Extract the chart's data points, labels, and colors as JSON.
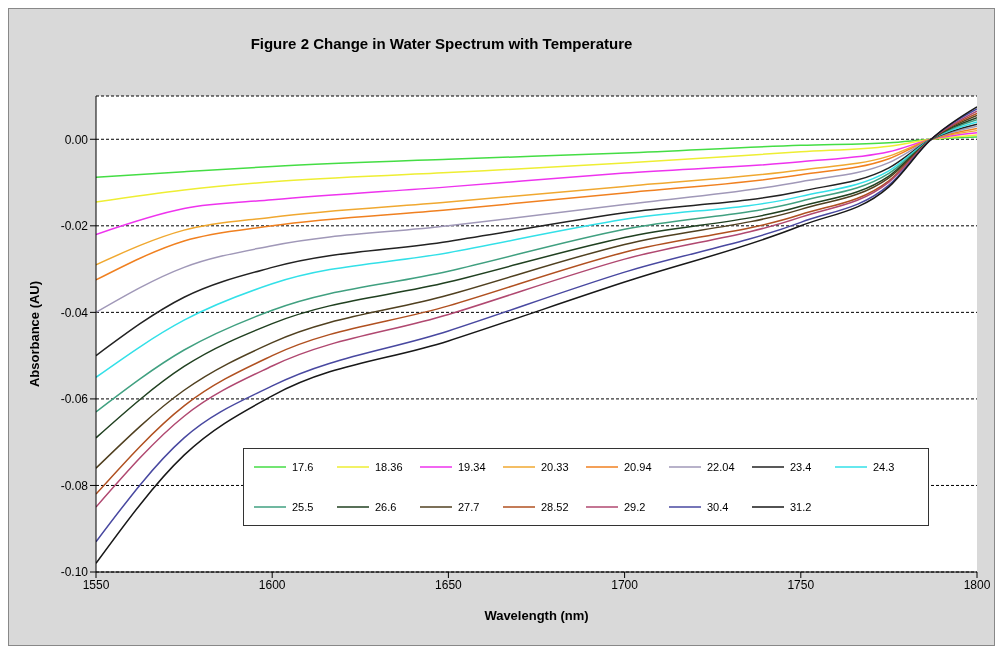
{
  "chart_data": {
    "type": "line",
    "title": "Figure 2 Change in Water Spectrum with Temperature",
    "xlabel": "Wavelength (nm)",
    "ylabel": "Absorbance (AU)",
    "x": [
      1550,
      1575,
      1600,
      1650,
      1700,
      1750,
      1775,
      1787,
      1800
    ],
    "xlim": [
      1550,
      1800
    ],
    "xticks": [
      1550,
      1600,
      1650,
      1700,
      1750,
      1800
    ],
    "ylim": [
      -0.1,
      0.01
    ],
    "yticks": [
      {
        "value": -0.1,
        "label": "-0.10"
      },
      {
        "value": -0.08,
        "label": "-0.08"
      },
      {
        "value": -0.06,
        "label": "-0.06"
      },
      {
        "value": -0.04,
        "label": "-0.04"
      },
      {
        "value": -0.02,
        "label": "-0.02"
      },
      {
        "value": 0,
        "label": "0.00"
      }
    ],
    "grid": "y",
    "legend": "bottom right",
    "marker": "none",
    "line_style": "solid",
    "series": [
      {
        "name": "17.6",
        "color": "#44dd44",
        "values": [
          -0.0088,
          -0.0075,
          -0.0063,
          -0.0046,
          -0.0032,
          -0.0014,
          -0.0008,
          0,
          0.0005
        ]
      },
      {
        "name": "18.36",
        "color": "#eeee33",
        "values": [
          -0.0145,
          -0.0117,
          -0.0098,
          -0.0077,
          -0.0055,
          -0.0029,
          -0.0016,
          0,
          0.001
        ]
      },
      {
        "name": "19.34",
        "color": "#ee33ee",
        "values": [
          -0.022,
          -0.016,
          -0.014,
          -0.011,
          -0.0078,
          -0.0052,
          -0.0029,
          0,
          0.0015
        ]
      },
      {
        "name": "20.33",
        "color": "#f0a830",
        "values": [
          -0.029,
          -0.021,
          -0.018,
          -0.0145,
          -0.0109,
          -0.0071,
          -0.0039,
          0,
          0.002
        ]
      },
      {
        "name": "20.94",
        "color": "#f08020",
        "values": [
          -0.0325,
          -0.0235,
          -0.02,
          -0.0163,
          -0.0124,
          -0.0082,
          -0.0045,
          0,
          0.0025
        ]
      },
      {
        "name": "22.04",
        "color": "#a098b8",
        "values": [
          -0.04,
          -0.0296,
          -0.0246,
          -0.02,
          -0.0151,
          -0.0098,
          -0.0054,
          0,
          0.003
        ]
      },
      {
        "name": "23.4",
        "color": "#222222",
        "values": [
          -0.05,
          -0.0365,
          -0.0296,
          -0.0236,
          -0.017,
          -0.012,
          -0.0066,
          0,
          0.0035
        ]
      },
      {
        "name": "24.3",
        "color": "#33e0e8",
        "values": [
          -0.055,
          -0.0418,
          -0.0334,
          -0.0262,
          -0.0185,
          -0.0132,
          -0.0073,
          0,
          0.004
        ]
      },
      {
        "name": "25.5",
        "color": "#40a080",
        "values": [
          -0.063,
          -0.0487,
          -0.0395,
          -0.0305,
          -0.0208,
          -0.0143,
          -0.0079,
          0,
          0.0045
        ]
      },
      {
        "name": "26.6",
        "color": "#204020",
        "values": [
          -0.069,
          -0.0525,
          -0.0426,
          -0.033,
          -0.0227,
          -0.0155,
          -0.0085,
          0,
          0.005
        ]
      },
      {
        "name": "27.7",
        "color": "#504020",
        "values": [
          -0.076,
          -0.058,
          -0.047,
          -0.036,
          -0.0243,
          -0.0162,
          -0.0089,
          0,
          0.0055
        ]
      },
      {
        "name": "28.52",
        "color": "#b05020",
        "values": [
          -0.082,
          -0.0616,
          -0.05,
          -0.0385,
          -0.0261,
          -0.0174,
          -0.0096,
          0,
          0.006
        ]
      },
      {
        "name": "29.2",
        "color": "#b04870",
        "values": [
          -0.085,
          -0.064,
          -0.0524,
          -0.0405,
          -0.0277,
          -0.018,
          -0.0099,
          0,
          0.0065
        ]
      },
      {
        "name": "30.4",
        "color": "#4848a0",
        "values": [
          -0.093,
          -0.069,
          -0.057,
          -0.0443,
          -0.0307,
          -0.0192,
          -0.0106,
          0,
          0.007
        ]
      },
      {
        "name": "31.2",
        "color": "#181818",
        "values": [
          -0.098,
          -0.073,
          -0.0593,
          -0.0466,
          -0.033,
          -0.02,
          -0.011,
          0,
          0.0075
        ]
      }
    ]
  }
}
